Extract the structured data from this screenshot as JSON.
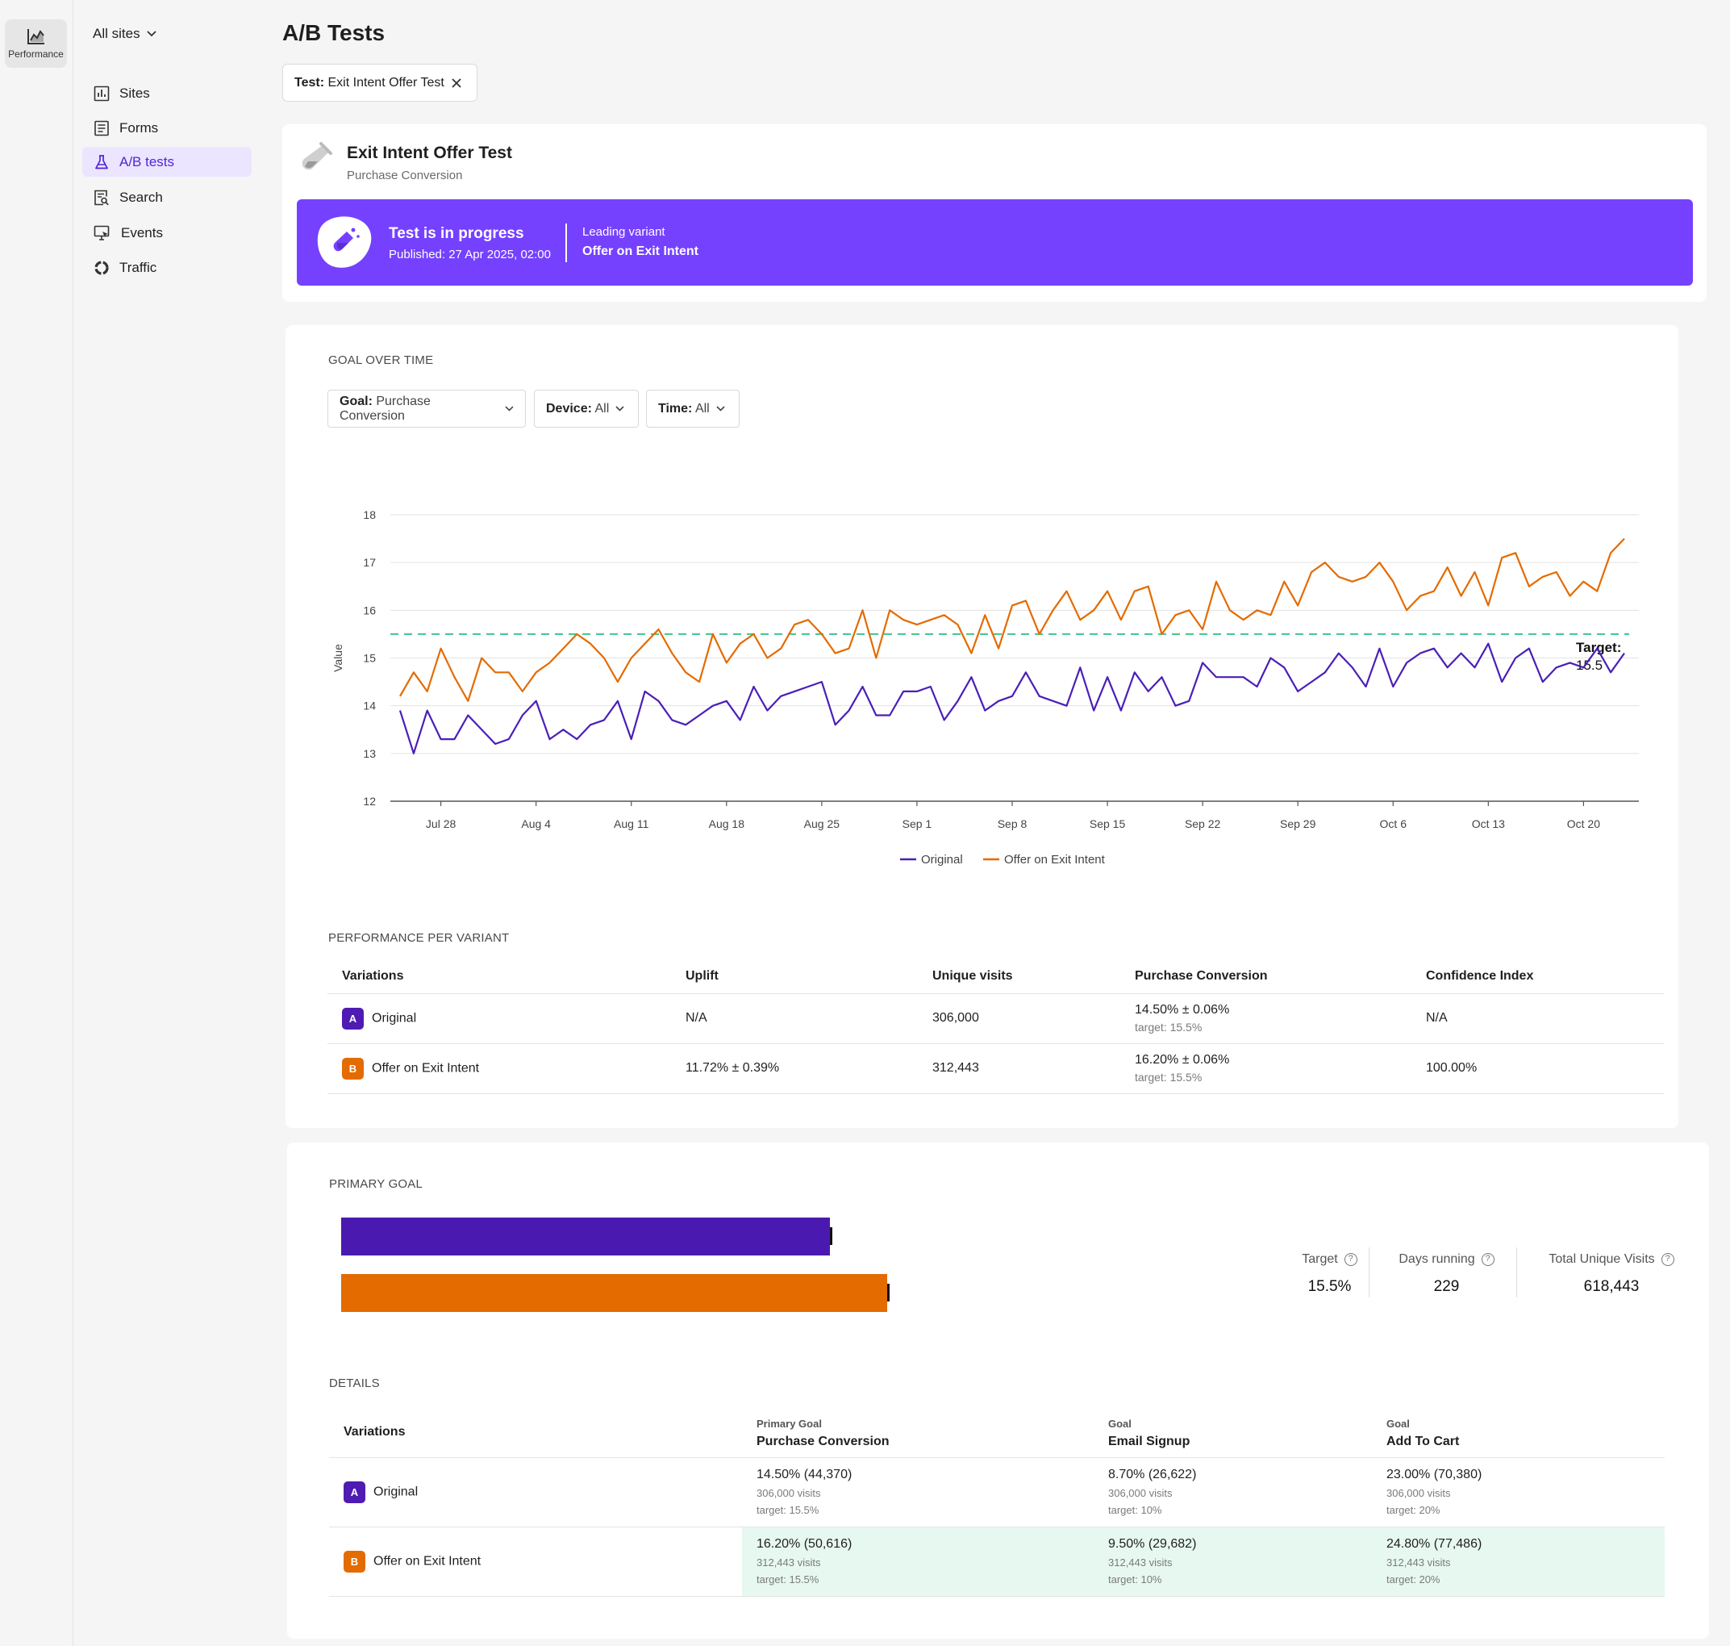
{
  "rail": {
    "label": "Performance"
  },
  "nav": {
    "site_selector": "All sites",
    "items": [
      {
        "label": "Sites",
        "icon": "bar-chart-icon"
      },
      {
        "label": "Forms",
        "icon": "form-icon"
      },
      {
        "label": "A/B tests",
        "icon": "flask-icon",
        "active": true
      },
      {
        "label": "Search",
        "icon": "search-doc-icon"
      },
      {
        "label": "Events",
        "icon": "events-icon"
      },
      {
        "label": "Traffic",
        "icon": "traffic-icon"
      }
    ]
  },
  "page": {
    "title": "A/B Tests"
  },
  "filter_chip": {
    "key": "Test:",
    "value": "Exit Intent Offer Test"
  },
  "test": {
    "name": "Exit Intent Offer Test",
    "goal": "Purchase Conversion",
    "status": "Test is in progress",
    "published": "Published: 27 Apr 2025, 02:00",
    "leading_label": "Leading variant",
    "leading_value": "Offer on Exit Intent",
    "banner_color": "#7541ff"
  },
  "goal_over_time": {
    "section_label": "GOAL OVER TIME",
    "filters": [
      {
        "key": "Goal:",
        "value": "Purchase Conversion"
      },
      {
        "key": "Device:",
        "value": "All"
      },
      {
        "key": "Time:",
        "value": "All"
      }
    ]
  },
  "chart_data": {
    "type": "line",
    "xlabel": "",
    "ylabel": "Value",
    "ylim": [
      12,
      18
    ],
    "y_ticks": [
      12,
      13,
      14,
      15,
      16,
      17,
      18
    ],
    "x_tick_labels": [
      "Jul 28",
      "Aug 4",
      "Aug 11",
      "Aug 18",
      "Aug 25",
      "Sep 1",
      "Sep 8",
      "Sep 15",
      "Sep 22",
      "Sep 29",
      "Oct 6",
      "Oct 13",
      "Oct 20"
    ],
    "x_start": "Jul 25",
    "target": {
      "value": 15.5,
      "label": "Target: 15.5",
      "color": "#3cc48e"
    },
    "grid": true,
    "legend": "bottom-center",
    "series": [
      {
        "name": "Original",
        "color": "#4a1fb8",
        "values": [
          13.9,
          13.0,
          13.9,
          13.3,
          13.3,
          13.8,
          13.5,
          13.2,
          13.3,
          13.8,
          14.1,
          13.3,
          13.5,
          13.3,
          13.6,
          13.7,
          14.1,
          13.3,
          14.3,
          14.1,
          13.7,
          13.6,
          13.8,
          14.0,
          14.1,
          13.7,
          14.4,
          13.9,
          14.2,
          14.3,
          14.4,
          14.5,
          13.6,
          13.9,
          14.4,
          13.8,
          13.8,
          14.3,
          14.3,
          14.4,
          13.7,
          14.1,
          14.6,
          13.9,
          14.1,
          14.2,
          14.7,
          14.2,
          14.1,
          14.0,
          14.8,
          13.9,
          14.6,
          13.9,
          14.7,
          14.3,
          14.6,
          14.0,
          14.1,
          14.9,
          14.6,
          14.6,
          14.6,
          14.4,
          15.0,
          14.8,
          14.3,
          14.5,
          14.7,
          15.1,
          14.8,
          14.4,
          15.2,
          14.4,
          14.9,
          15.1,
          15.2,
          14.8,
          15.1,
          14.8,
          15.3,
          14.5,
          15.0,
          15.2,
          14.5,
          14.8,
          14.9,
          14.8,
          15.2,
          14.7,
          15.1
        ]
      },
      {
        "name": "Offer on Exit Intent",
        "color": "#e46b00",
        "values": [
          14.2,
          14.7,
          14.3,
          15.2,
          14.6,
          14.1,
          15.0,
          14.7,
          14.7,
          14.3,
          14.7,
          14.9,
          15.2,
          15.5,
          15.3,
          15.0,
          14.5,
          15.0,
          15.3,
          15.6,
          15.1,
          14.7,
          14.5,
          15.5,
          14.9,
          15.3,
          15.5,
          15.0,
          15.2,
          15.7,
          15.8,
          15.5,
          15.1,
          15.2,
          16.0,
          15.0,
          16.0,
          15.8,
          15.7,
          15.8,
          15.9,
          15.7,
          15.1,
          15.9,
          15.2,
          16.1,
          16.2,
          15.5,
          16.0,
          16.4,
          15.8,
          16.0,
          16.4,
          15.8,
          16.4,
          16.5,
          15.5,
          15.9,
          16.0,
          15.6,
          16.6,
          16.0,
          15.8,
          16.0,
          15.9,
          16.6,
          16.1,
          16.8,
          17.0,
          16.7,
          16.6,
          16.7,
          17.0,
          16.6,
          16.0,
          16.3,
          16.4,
          16.9,
          16.3,
          16.8,
          16.1,
          17.1,
          17.2,
          16.5,
          16.7,
          16.8,
          16.3,
          16.6,
          16.4,
          17.2,
          17.5
        ]
      }
    ]
  },
  "performance": {
    "section_label": "PERFORMANCE PER VARIANT",
    "columns": [
      "Variations",
      "Uplift",
      "Unique visits",
      "Purchase Conversion",
      "Confidence Index"
    ],
    "rows": [
      {
        "badge": "A",
        "name": "Original",
        "uplift": "N/A",
        "visits": "306,000",
        "conversion": "14.50% ± 0.06%",
        "target": "target: 15.5%",
        "confidence": "N/A"
      },
      {
        "badge": "B",
        "name": "Offer on Exit Intent",
        "uplift": "11.72% ± 0.39%",
        "visits": "312,443",
        "conversion": "16.20% ± 0.06%",
        "target": "target: 15.5%",
        "confidence": "100.00%"
      }
    ]
  },
  "primary_goal": {
    "section_label": "PRIMARY GOAL",
    "bars": [
      {
        "variant": "Original",
        "value": 14.5,
        "color": "#4a1ab0"
      },
      {
        "variant": "Offer on Exit Intent",
        "value": 16.2,
        "color": "#e46b00"
      }
    ],
    "stats": [
      {
        "label": "Target",
        "value": "15.5%"
      },
      {
        "label": "Days running",
        "value": "229"
      },
      {
        "label": "Total Unique Visits",
        "value": "618,443"
      }
    ]
  },
  "details": {
    "section_label": "DETAILS",
    "variations_header": "Variations",
    "goal_headers": [
      {
        "kind": "Primary Goal",
        "name": "Purchase Conversion"
      },
      {
        "kind": "Goal",
        "name": "Email Signup"
      },
      {
        "kind": "Goal",
        "name": "Add To Cart"
      }
    ],
    "rows": [
      {
        "badge": "A",
        "name": "Original",
        "cells": [
          {
            "value": "14.50% (44,370)",
            "visits": "306,000 visits",
            "target": "target: 15.5%"
          },
          {
            "value": "8.70% (26,622)",
            "visits": "306,000 visits",
            "target": "target: 10%"
          },
          {
            "value": "23.00% (70,380)",
            "visits": "306,000 visits",
            "target": "target: 20%"
          }
        ]
      },
      {
        "badge": "B",
        "name": "Offer on Exit Intent",
        "cells": [
          {
            "value": "16.20% (50,616)",
            "visits": "312,443 visits",
            "target": "target: 15.5%"
          },
          {
            "value": "9.50% (29,682)",
            "visits": "312,443 visits",
            "target": "target: 10%"
          },
          {
            "value": "24.80% (77,486)",
            "visits": "312,443 visits",
            "target": "target: 20%"
          }
        ]
      }
    ]
  }
}
